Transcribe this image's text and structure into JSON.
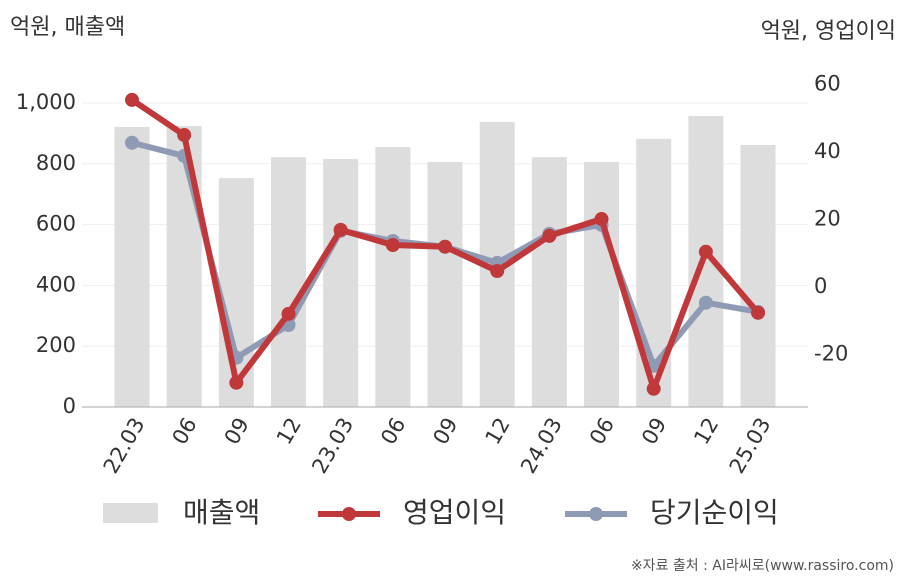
{
  "chart_data": {
    "type": "bar_line_dual",
    "y_axis_label": "억원, 매출액",
    "y2_axis_label": "억원, 영업이익",
    "source": "※자료 출처 : AI라씨로(www.rassiro.com)",
    "categories": [
      "22.03",
      "06",
      "09",
      "12",
      "23.03",
      "06",
      "09",
      "12",
      "24.03",
      "06",
      "09",
      "12",
      "25.03"
    ],
    "ylim": [
      0,
      1075.7
    ],
    "yticks": [
      0,
      200,
      400,
      600,
      800,
      {
        "value": 1000,
        "label": "1,000"
      }
    ],
    "y2lim": [
      -35.6,
      61.3
    ],
    "y2ticks": [
      -20,
      0,
      20,
      40,
      60
    ],
    "grid": true,
    "series": [
      {
        "name": "매출액",
        "type": "bar",
        "color": "#dddddd",
        "values": [
          921,
          924,
          753,
          822,
          816,
          855,
          806,
          938,
          822,
          806,
          882,
          957,
          862
        ]
      },
      {
        "name": "영업이익",
        "type": "line",
        "axis": "y2",
        "color": "#c0383a",
        "values": [
          55.4,
          45.0,
          -28.4,
          -8.0,
          16.9,
          12.4,
          11.9,
          4.7,
          15.1,
          20.1,
          -30.2,
          10.4,
          -7.7
        ]
      },
      {
        "name": "당기순이익",
        "type": "line",
        "axis": "y2",
        "color": "#8f9bb5",
        "values": [
          42.7,
          38.8,
          -21.0,
          -11.3,
          16.6,
          13.6,
          11.9,
          7.1,
          15.7,
          18.4,
          -23.4,
          -4.7,
          -7.4
        ]
      }
    ]
  }
}
